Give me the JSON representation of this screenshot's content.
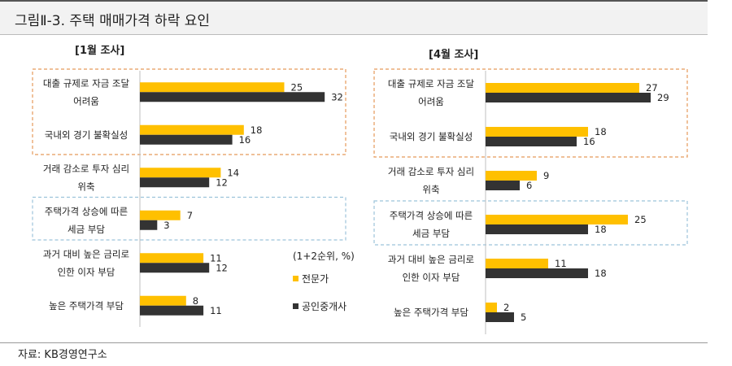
{
  "figure": {
    "title": "그림Ⅱ-3. 주택 매매가격 하락 요인",
    "source": "자료: KB경영연구소"
  },
  "legend": {
    "unit": "(1+2순위, %)",
    "series": [
      "전문가",
      "공인중개사"
    ]
  },
  "colors": {
    "expert": "#FFC000",
    "agent": "#333333",
    "orange_box": "#E59A5A",
    "blue_box": "#9CC3DA"
  },
  "chart_data": [
    {
      "type": "bar",
      "orientation": "horizontal",
      "title": "[1월 조사]",
      "categories": [
        [
          "대출 규제로 자금 조달",
          "어려움"
        ],
        [
          "국내외 경기 불확실성"
        ],
        [
          "거래 감소로 투자 심리",
          "위축"
        ],
        [
          "주택가격 상승에 따른",
          "세금 부담"
        ],
        [
          "과거 대비 높은 금리로",
          "인한 이자 부담"
        ],
        [
          "높은 주택가격 부담"
        ]
      ],
      "series": [
        {
          "name": "전문가",
          "values": [
            25,
            18,
            14,
            7,
            11,
            8
          ]
        },
        {
          "name": "공인중개사",
          "values": [
            32,
            16,
            12,
            3,
            12,
            11
          ]
        }
      ],
      "highlight_groups": [
        {
          "style": "orange-dashed",
          "categories": [
            0,
            1
          ]
        },
        {
          "style": "blue-dashed",
          "categories": [
            3
          ]
        }
      ]
    },
    {
      "type": "bar",
      "orientation": "horizontal",
      "title": "[4월 조사]",
      "categories": [
        [
          "대출 규제로 자금 조달",
          "어려움"
        ],
        [
          "국내외 경기 불확실성"
        ],
        [
          "거래 감소로 투자 심리",
          "위축"
        ],
        [
          "주택가격 상승에 따른",
          "세금 부담"
        ],
        [
          "과거 대비 높은 금리로",
          "인한 이자 부담"
        ],
        [
          "높은 주택가격 부담"
        ]
      ],
      "series": [
        {
          "name": "전문가",
          "values": [
            27,
            18,
            9,
            25,
            11,
            2
          ]
        },
        {
          "name": "공인중개사",
          "values": [
            29,
            16,
            6,
            18,
            18,
            5
          ]
        }
      ],
      "highlight_groups": [
        {
          "style": "orange-dashed",
          "categories": [
            0,
            1
          ]
        },
        {
          "style": "blue-dashed",
          "categories": [
            3
          ]
        }
      ]
    }
  ]
}
